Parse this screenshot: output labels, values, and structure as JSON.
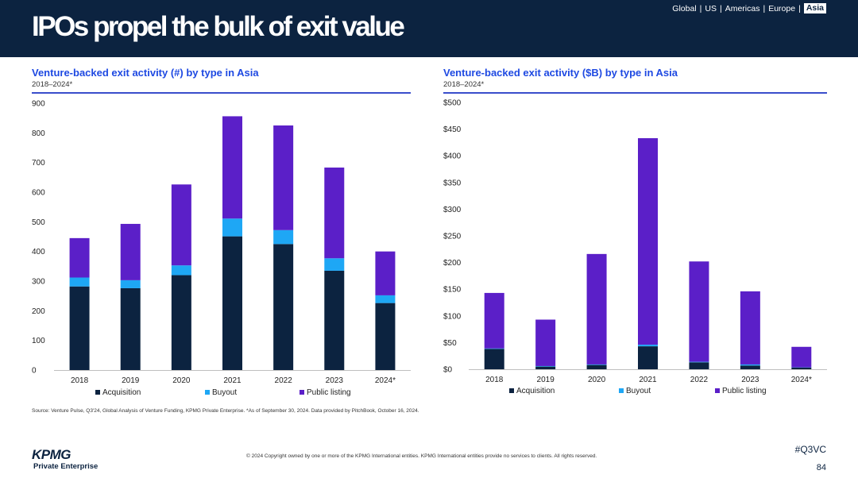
{
  "header": {
    "title": "IPOs propel the bulk of exit value",
    "nav": [
      "Global",
      "US",
      "Americas",
      "Europe",
      "Asia"
    ],
    "nav_separator": "|",
    "active_nav": "Asia"
  },
  "colors": {
    "header_bg": "#0c2340",
    "acquisition": "#0c2340",
    "buyout": "#1ea7f5",
    "public_listing": "#5b1fc8",
    "chart_title": "#1e49e2"
  },
  "charts": {
    "left": {
      "title": "Venture-backed exit activity (#) by type in Asia",
      "subtitle": "2018–2024*"
    },
    "right": {
      "title": "Venture-backed exit activity ($B) by type in Asia",
      "subtitle": "2018–2024*"
    }
  },
  "chart_data": [
    {
      "type": "bar",
      "stacked": true,
      "title": "Venture-backed exit activity (#) by type in Asia",
      "subtitle": "2018–2024*",
      "categories": [
        "2018",
        "2019",
        "2020",
        "2021",
        "2022",
        "2023",
        "2024*"
      ],
      "series": [
        {
          "name": "Acquisition",
          "values": [
            282,
            276,
            320,
            451,
            425,
            335,
            226
          ]
        },
        {
          "name": "Buyout",
          "values": [
            30,
            27,
            33,
            60,
            47,
            42,
            26
          ]
        },
        {
          "name": "Public listing",
          "values": [
            133,
            190,
            273,
            345,
            353,
            306,
            148
          ]
        }
      ],
      "ylim": [
        0,
        900
      ],
      "yticks": [
        0,
        100,
        200,
        300,
        400,
        500,
        600,
        700,
        800,
        900
      ],
      "ytick_labels": [
        "0",
        "100",
        "200",
        "300",
        "400",
        "500",
        "600",
        "700",
        "800",
        "900"
      ],
      "legend": "bottom",
      "grid": false
    },
    {
      "type": "bar",
      "stacked": true,
      "title": "Venture-backed exit activity ($B) by type in Asia",
      "subtitle": "2018–2024*",
      "categories": [
        "2018",
        "2019",
        "2020",
        "2021",
        "2022",
        "2023",
        "2024*"
      ],
      "series": [
        {
          "name": "Acquisition",
          "values": [
            38,
            5,
            8,
            43,
            13,
            7,
            3
          ]
        },
        {
          "name": "Buyout",
          "values": [
            1,
            1,
            1,
            3,
            1,
            2,
            0.5
          ]
        },
        {
          "name": "Public listing",
          "values": [
            104,
            87,
            207,
            387,
            188,
            137,
            38.5
          ]
        }
      ],
      "ylim": [
        0,
        500
      ],
      "yticks": [
        0,
        50,
        100,
        150,
        200,
        250,
        300,
        350,
        400,
        450,
        500
      ],
      "ytick_labels": [
        "$0",
        "$50",
        "$100",
        "$150",
        "$200",
        "$250",
        "$300",
        "$350",
        "$400",
        "$450",
        "$500"
      ],
      "legend": "bottom",
      "grid": false
    }
  ],
  "footer": {
    "source": "Source: Venture Pulse, Q3'24, Global Analysis of Venture Funding, KPMG Private Enterprise. *As of September 30, 2024. Data provided by PitchBook, October 16, 2024.",
    "copyright": "© 2024 Copyright owned by one or more of the KPMG International entities. KPMG International entities provide no services to clients. All rights reserved.",
    "hashtag": "#Q3VC",
    "page_number": "84",
    "logo_text": "KPMG",
    "logo_subtext": "Private Enterprise"
  }
}
